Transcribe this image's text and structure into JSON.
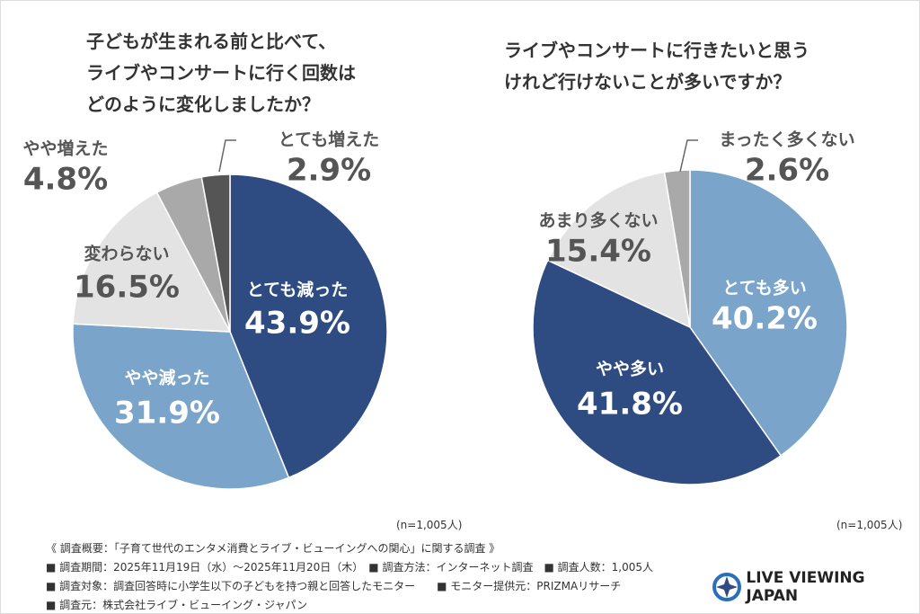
{
  "chart_data": [
    {
      "type": "pie",
      "title": "子どもが生まれる前と比べて、\nライブやコンサートに行く回数は\nどのように変化しましたか？",
      "categories": [
        "とても減った",
        "やや減った",
        "変わらない",
        "やや増えた",
        "とても増えた"
      ],
      "values": [
        43.9,
        31.9,
        16.5,
        4.8,
        2.9
      ],
      "value_labels": [
        "43.9%",
        "31.9%",
        "16.5%",
        "4.8%",
        "2.9%"
      ],
      "colors": [
        "#2e4b82",
        "#7ba4ca",
        "#e3e3e3",
        "#a9a9a9",
        "#555555"
      ],
      "note": "(n=1,005人)"
    },
    {
      "type": "pie",
      "title": "ライブやコンサートに行きたいと思う\nけれど行けないことが多いですか？",
      "categories": [
        "とても多い",
        "やや多い",
        "あまり多くない",
        "まったく多くない"
      ],
      "values": [
        40.2,
        41.8,
        15.4,
        2.6
      ],
      "value_labels": [
        "40.2%",
        "41.8%",
        "15.4%",
        "2.6%"
      ],
      "colors": [
        "#7ba4ca",
        "#2e4b82",
        "#e3e3e3",
        "#a9a9a9"
      ],
      "note": "(n=1,005人)"
    }
  ],
  "footer": {
    "lines": [
      "《 調査概要：「子育て世代のエンタメ消費とライブ・ビューイングへの関心」に関する調査 》",
      "■ 調査期間：2025年11月19日（水）〜2025年11月20日（木）　■ 調査方法：インターネット調査　■ 調査人数：1,005人",
      "■ 調査対象：調査回答時に小学生以下の子どもを持つ親と回答したモニター　　■ モニター提供元：PRIZMAリサーチ",
      "■ 調査元：株式会社ライブ・ビューイング・ジャパン"
    ],
    "logo": "LIVE VIEWING JAPAN"
  }
}
